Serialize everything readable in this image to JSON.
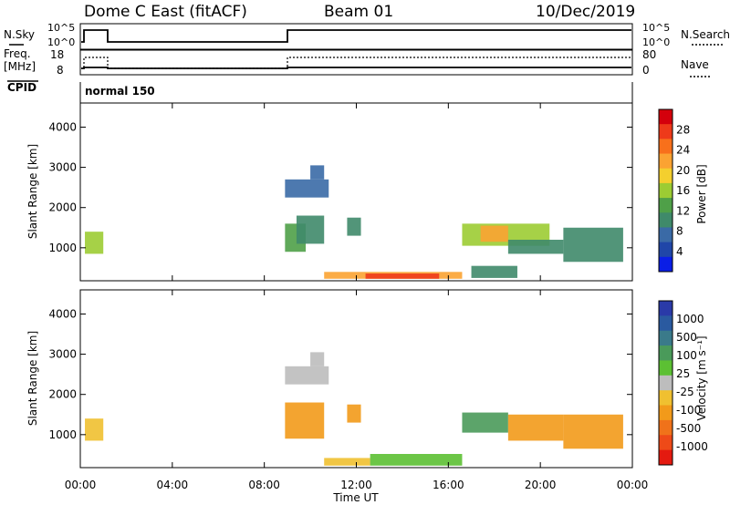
{
  "header": {
    "station": "Dome C East (fitACF)",
    "beam": "Beam 01",
    "date": "10/Dec/2019"
  },
  "status_panels": {
    "nsky_label": "N.Sky",
    "nsearch_label": "N.Search",
    "nsky_ticks": [
      "10^5",
      "10^0"
    ],
    "nsearch_ticks": [
      "10^5",
      "10^0"
    ],
    "freq_label_lines": [
      "Freq.",
      "[MHz]"
    ],
    "freq_ticks": [
      "18",
      "8"
    ],
    "nave_label": "Nave",
    "nave_ticks": [
      "80",
      "0"
    ],
    "cpid_label": "CPID",
    "cpid_text": "normal 150"
  },
  "axes": {
    "ylabel": "Slant Range [km]",
    "yticks": [
      "4000",
      "3000",
      "2000",
      "1000"
    ],
    "xticks": [
      "00:00",
      "04:00",
      "08:00",
      "12:00",
      "16:00",
      "20:00",
      "00:00"
    ],
    "xlabel": "Time UT"
  },
  "colorbars": {
    "power": {
      "label": "Power [dB]",
      "ticks": [
        "28",
        "24",
        "20",
        "16",
        "12",
        "8",
        "4"
      ],
      "colors": [
        "#d4000c",
        "#ee3a1a",
        "#f8701b",
        "#fba332",
        "#f4cf2e",
        "#9ccc33",
        "#4fa048",
        "#3f8a6a",
        "#3a6aa6",
        "#2046a8",
        "#0a1ee6"
      ]
    },
    "velocity": {
      "label": "Velocity [m s⁻¹]",
      "ticks": [
        "1000",
        "500",
        "100",
        "25",
        "-25",
        "-100",
        "-500",
        "-1000"
      ],
      "colors": [
        "#2a3aa8",
        "#2a5aa0",
        "#3a7a8a",
        "#4a9a5a",
        "#5cc033",
        "#bdbdbd",
        "#f0c030",
        "#f29a1a",
        "#f0721a",
        "#ee4a18",
        "#e41a10"
      ]
    }
  },
  "chart_data": [
    {
      "type": "heatmap",
      "title": "Power [dB]",
      "x_unit": "UT hours",
      "xlim": [
        0,
        24
      ],
      "ylim": [
        180,
        4600
      ],
      "xlabel": "Time UT",
      "ylabel": "Slant Range [km]",
      "regions": [
        {
          "t": [
            0.2,
            1.0
          ],
          "r": [
            850,
            1400
          ],
          "v": 14
        },
        {
          "t": [
            8.9,
            9.8
          ],
          "r": [
            900,
            1600
          ],
          "v": 12
        },
        {
          "t": [
            9.4,
            10.6
          ],
          "r": [
            1100,
            1800
          ],
          "v": 10
        },
        {
          "t": [
            8.9,
            10.8
          ],
          "r": [
            2250,
            2700
          ],
          "v": 6
        },
        {
          "t": [
            10.0,
            10.6
          ],
          "r": [
            2700,
            3050
          ],
          "v": 6
        },
        {
          "t": [
            11.6,
            12.2
          ],
          "r": [
            1300,
            1750
          ],
          "v": 10
        },
        {
          "t": [
            10.6,
            16.6
          ],
          "r": [
            230,
            400
          ],
          "v": 20
        },
        {
          "t": [
            12.4,
            15.6
          ],
          "r": [
            230,
            360
          ],
          "v": 27
        },
        {
          "t": [
            16.6,
            20.4
          ],
          "r": [
            1050,
            1600
          ],
          "v": 14
        },
        {
          "t": [
            17.4,
            18.6
          ],
          "r": [
            1150,
            1550
          ],
          "v": 22
        },
        {
          "t": [
            18.6,
            21.0
          ],
          "r": [
            850,
            1200
          ],
          "v": 10
        },
        {
          "t": [
            21.0,
            23.6
          ],
          "r": [
            650,
            1500
          ],
          "v": 8
        },
        {
          "t": [
            17.0,
            19.0
          ],
          "r": [
            250,
            550
          ],
          "v": 8
        }
      ]
    },
    {
      "type": "heatmap",
      "title": "Velocity [m s⁻¹]",
      "x_unit": "UT hours",
      "xlim": [
        0,
        24
      ],
      "ylim": [
        180,
        4600
      ],
      "xlabel": "Time UT",
      "ylabel": "Slant Range [km]",
      "regions": [
        {
          "t": [
            0.2,
            1.0
          ],
          "r": [
            850,
            1400
          ],
          "v": -80
        },
        {
          "t": [
            8.9,
            10.6
          ],
          "r": [
            900,
            1800
          ],
          "v": -200
        },
        {
          "t": [
            8.9,
            10.8
          ],
          "r": [
            2250,
            2700
          ],
          "v": 0
        },
        {
          "t": [
            10.0,
            10.6
          ],
          "r": [
            2700,
            3050
          ],
          "v": 0
        },
        {
          "t": [
            11.6,
            12.2
          ],
          "r": [
            1300,
            1750
          ],
          "v": -200
        },
        {
          "t": [
            10.6,
            12.6
          ],
          "r": [
            230,
            420
          ],
          "v": -100
        },
        {
          "t": [
            12.6,
            16.6
          ],
          "r": [
            230,
            520
          ],
          "v": 60
        },
        {
          "t": [
            16.6,
            18.6
          ],
          "r": [
            1050,
            1550
          ],
          "v": 200
        },
        {
          "t": [
            18.6,
            21.0
          ],
          "r": [
            850,
            1500
          ],
          "v": -200
        },
        {
          "t": [
            21.0,
            23.6
          ],
          "r": [
            650,
            1500
          ],
          "v": -120
        }
      ]
    }
  ]
}
